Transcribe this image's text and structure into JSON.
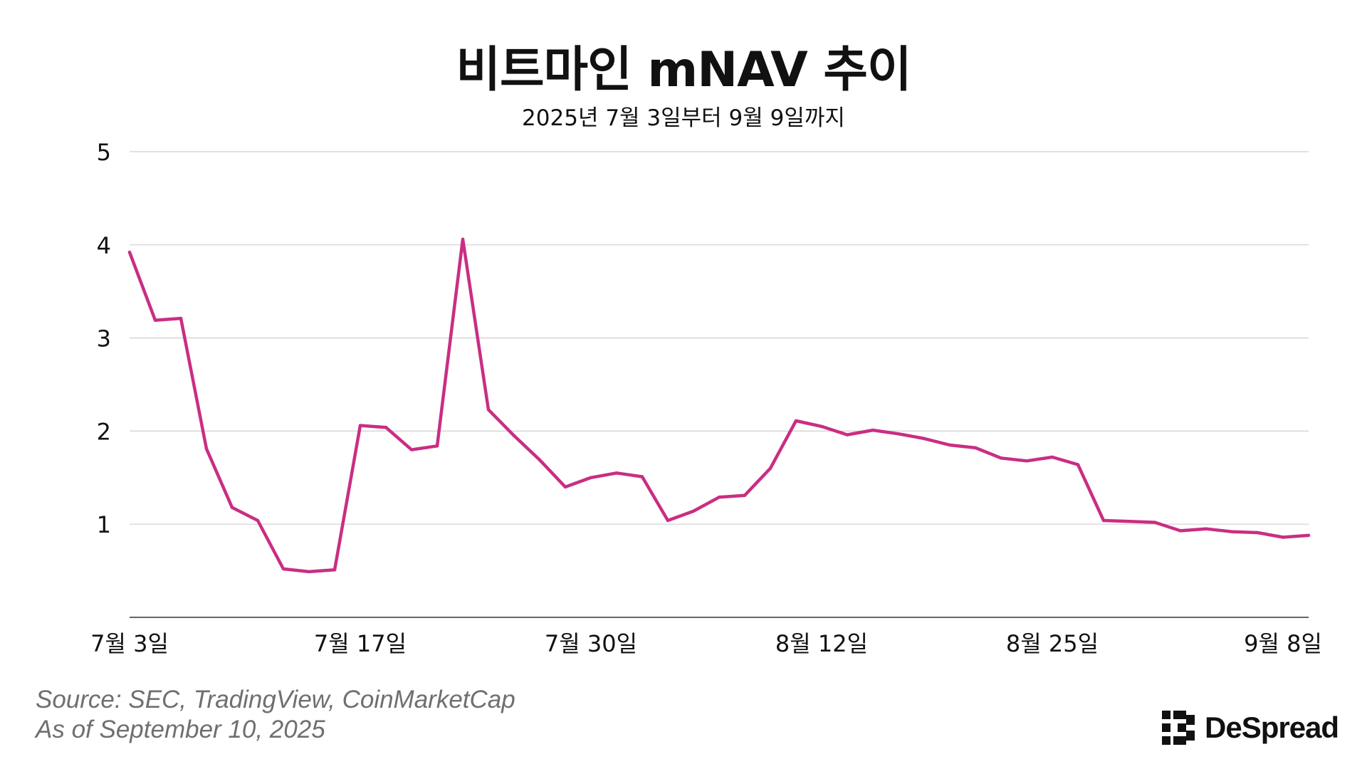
{
  "header": {
    "title": "비트마인 mNAV 추이",
    "subtitle": "2025년 7월 3일부터 9월 9일까지"
  },
  "footer": {
    "source_line": "Source: SEC, TradingView, CoinMarketCap",
    "date_line": "As of September 10, 2025",
    "logo_text": "DeSpread"
  },
  "chart_data": {
    "type": "line",
    "title": "비트마인 mNAV 추이",
    "subtitle": "2025년 7월 3일부터 9월 9일까지",
    "xlabel": "",
    "ylabel": "",
    "ylim": [
      0,
      5
    ],
    "yticks": [
      "1",
      "2",
      "3",
      "4",
      "5"
    ],
    "xticks": [
      {
        "index": 0,
        "label": "7월 3일"
      },
      {
        "index": 9,
        "label": "7월 17일"
      },
      {
        "index": 18,
        "label": "7월 30일"
      },
      {
        "index": 27,
        "label": "8월 12일"
      },
      {
        "index": 36,
        "label": "8월 25일"
      },
      {
        "index": 45,
        "label": "9월 8일"
      }
    ],
    "grid": true,
    "legend": "none",
    "color": "#c92e83",
    "series": [
      {
        "values": [
          3.92,
          3.19,
          3.21,
          1.81,
          1.18,
          1.04,
          0.52,
          0.49,
          0.51,
          2.06,
          2.04,
          1.8,
          1.84,
          4.06,
          2.23,
          1.95,
          1.69,
          1.4,
          1.5,
          1.55,
          1.51,
          1.04,
          1.14,
          1.29,
          1.31,
          1.6,
          2.11,
          2.05,
          1.96,
          2.01,
          1.97,
          1.92,
          1.85,
          1.82,
          1.71,
          1.68,
          1.72,
          1.64,
          1.04,
          1.03,
          1.02,
          0.93,
          0.95,
          0.92,
          0.91,
          0.86,
          0.88
        ]
      }
    ]
  }
}
